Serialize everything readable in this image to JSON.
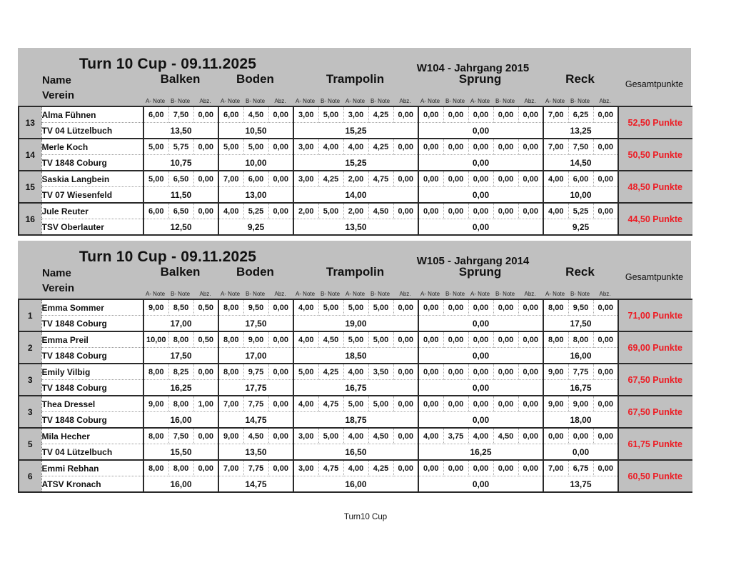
{
  "page": {
    "footer": "Turn10 Cup"
  },
  "colors": {
    "header_gray": "#c0c0c0",
    "accent_red": "#ed1c24",
    "grid_dark": "#2a2a2a",
    "grid_dotted": "#9a9a9a"
  },
  "header_labels": {
    "name": "Name",
    "verein": "Verein",
    "gesamt": "Gesamtpunkte"
  },
  "apparatus_columns": [
    {
      "label": "Balken",
      "sub": [
        "A- Note",
        "B- Note",
        "Abz."
      ]
    },
    {
      "label": "Boden",
      "sub": [
        "A- Note",
        "B- Note",
        "Abz."
      ]
    },
    {
      "label": "Trampolin",
      "sub": [
        "A- Note",
        "B- Note",
        "A- Note",
        "B- Note",
        "Abz."
      ]
    },
    {
      "label": "Sprung",
      "sub": [
        "A- Note",
        "B- Note",
        "A- Note",
        "B- Note",
        "Abz."
      ]
    },
    {
      "label": "Reck",
      "sub": [
        "A- Note",
        "B- Note",
        "Abz."
      ]
    }
  ],
  "tables": [
    {
      "title": "Turn 10 Cup - 09.11.2025",
      "subtitle": "W104 - Jahrgang 2015",
      "rows": [
        {
          "rank": "13",
          "name": "Alma Fühnen",
          "verein": "TV 04 Lützelbuch",
          "notes": [
            [
              "6,00",
              "7,50",
              "0,00"
            ],
            [
              "6,00",
              "4,50",
              "0,00"
            ],
            [
              "3,00",
              "5,00",
              "3,00",
              "4,25",
              "0,00"
            ],
            [
              "0,00",
              "0,00",
              "0,00",
              "0,00",
              "0,00"
            ],
            [
              "7,00",
              "6,25",
              "0,00"
            ]
          ],
          "sums": [
            "13,50",
            "10,50",
            "15,25",
            "0,00",
            "13,25"
          ],
          "total": "52,50 Punkte"
        },
        {
          "rank": "14",
          "name": "Merle Koch",
          "verein": "TV 1848 Coburg",
          "notes": [
            [
              "5,00",
              "5,75",
              "0,00"
            ],
            [
              "5,00",
              "5,00",
              "0,00"
            ],
            [
              "3,00",
              "4,00",
              "4,00",
              "4,25",
              "0,00"
            ],
            [
              "0,00",
              "0,00",
              "0,00",
              "0,00",
              "0,00"
            ],
            [
              "7,00",
              "7,50",
              "0,00"
            ]
          ],
          "sums": [
            "10,75",
            "10,00",
            "15,25",
            "0,00",
            "14,50"
          ],
          "total": "50,50 Punkte"
        },
        {
          "rank": "15",
          "name": "Saskia Langbein",
          "verein": "TV 07 Wiesenfeld",
          "notes": [
            [
              "5,00",
              "6,50",
              "0,00"
            ],
            [
              "7,00",
              "6,00",
              "0,00"
            ],
            [
              "3,00",
              "4,25",
              "2,00",
              "4,75",
              "0,00"
            ],
            [
              "0,00",
              "0,00",
              "0,00",
              "0,00",
              "0,00"
            ],
            [
              "4,00",
              "6,00",
              "0,00"
            ]
          ],
          "sums": [
            "11,50",
            "13,00",
            "14,00",
            "0,00",
            "10,00"
          ],
          "total": "48,50 Punkte"
        },
        {
          "rank": "16",
          "name": "Jule Reuter",
          "verein": "TSV Oberlauter",
          "notes": [
            [
              "6,00",
              "6,50",
              "0,00"
            ],
            [
              "4,00",
              "5,25",
              "0,00"
            ],
            [
              "2,00",
              "5,00",
              "2,00",
              "4,50",
              "0,00"
            ],
            [
              "0,00",
              "0,00",
              "0,00",
              "0,00",
              "0,00"
            ],
            [
              "4,00",
              "5,25",
              "0,00"
            ]
          ],
          "sums": [
            "12,50",
            "9,25",
            "13,50",
            "0,00",
            "9,25"
          ],
          "total": "44,50 Punkte"
        }
      ]
    },
    {
      "title": "Turn 10 Cup - 09.11.2025",
      "subtitle": "W105 - Jahrgang 2014",
      "rows": [
        {
          "rank": "1",
          "name": "Emma Sommer",
          "verein": "TV 1848 Coburg",
          "notes": [
            [
              "9,00",
              "8,50",
              "0,50"
            ],
            [
              "8,00",
              "9,50",
              "0,00"
            ],
            [
              "4,00",
              "5,00",
              "5,00",
              "5,00",
              "0,00"
            ],
            [
              "0,00",
              "0,00",
              "0,00",
              "0,00",
              "0,00"
            ],
            [
              "8,00",
              "9,50",
              "0,00"
            ]
          ],
          "sums": [
            "17,00",
            "17,50",
            "19,00",
            "0,00",
            "17,50"
          ],
          "total": "71,00 Punkte"
        },
        {
          "rank": "2",
          "name": "Emma Preil",
          "verein": "TV 1848 Coburg",
          "notes": [
            [
              "10,00",
              "8,00",
              "0,50"
            ],
            [
              "8,00",
              "9,00",
              "0,00"
            ],
            [
              "4,00",
              "4,50",
              "5,00",
              "5,00",
              "0,00"
            ],
            [
              "0,00",
              "0,00",
              "0,00",
              "0,00",
              "0,00"
            ],
            [
              "8,00",
              "8,00",
              "0,00"
            ]
          ],
          "sums": [
            "17,50",
            "17,00",
            "18,50",
            "0,00",
            "16,00"
          ],
          "total": "69,00 Punkte"
        },
        {
          "rank": "3",
          "name": "Emily Vilbig",
          "verein": "TV 1848 Coburg",
          "notes": [
            [
              "8,00",
              "8,25",
              "0,00"
            ],
            [
              "8,00",
              "9,75",
              "0,00"
            ],
            [
              "5,00",
              "4,25",
              "4,00",
              "3,50",
              "0,00"
            ],
            [
              "0,00",
              "0,00",
              "0,00",
              "0,00",
              "0,00"
            ],
            [
              "9,00",
              "7,75",
              "0,00"
            ]
          ],
          "sums": [
            "16,25",
            "17,75",
            "16,75",
            "0,00",
            "16,75"
          ],
          "total": "67,50 Punkte"
        },
        {
          "rank": "3",
          "name": "Thea Dressel",
          "verein": "TV 1848 Coburg",
          "notes": [
            [
              "9,00",
              "8,00",
              "1,00"
            ],
            [
              "7,00",
              "7,75",
              "0,00"
            ],
            [
              "4,00",
              "4,75",
              "5,00",
              "5,00",
              "0,00"
            ],
            [
              "0,00",
              "0,00",
              "0,00",
              "0,00",
              "0,00"
            ],
            [
              "9,00",
              "9,00",
              "0,00"
            ]
          ],
          "sums": [
            "16,00",
            "14,75",
            "18,75",
            "0,00",
            "18,00"
          ],
          "total": "67,50 Punkte"
        },
        {
          "rank": "5",
          "name": "Mila Hecher",
          "verein": "TV 04 Lützelbuch",
          "notes": [
            [
              "8,00",
              "7,50",
              "0,00"
            ],
            [
              "9,00",
              "4,50",
              "0,00"
            ],
            [
              "3,00",
              "5,00",
              "4,00",
              "4,50",
              "0,00"
            ],
            [
              "4,00",
              "3,75",
              "4,00",
              "4,50",
              "0,00"
            ],
            [
              "0,00",
              "0,00",
              "0,00"
            ]
          ],
          "sums": [
            "15,50",
            "13,50",
            "16,50",
            "16,25",
            "0,00"
          ],
          "total": "61,75 Punkte"
        },
        {
          "rank": "6",
          "name": "Emmi Rebhan",
          "verein": "ATSV Kronach",
          "notes": [
            [
              "8,00",
              "8,00",
              "0,00"
            ],
            [
              "7,00",
              "7,75",
              "0,00"
            ],
            [
              "3,00",
              "4,75",
              "4,00",
              "4,25",
              "0,00"
            ],
            [
              "0,00",
              "0,00",
              "0,00",
              "0,00",
              "0,00"
            ],
            [
              "7,00",
              "6,75",
              "0,00"
            ]
          ],
          "sums": [
            "16,00",
            "14,75",
            "16,00",
            "0,00",
            "13,75"
          ],
          "total": "60,50 Punkte"
        }
      ]
    }
  ]
}
